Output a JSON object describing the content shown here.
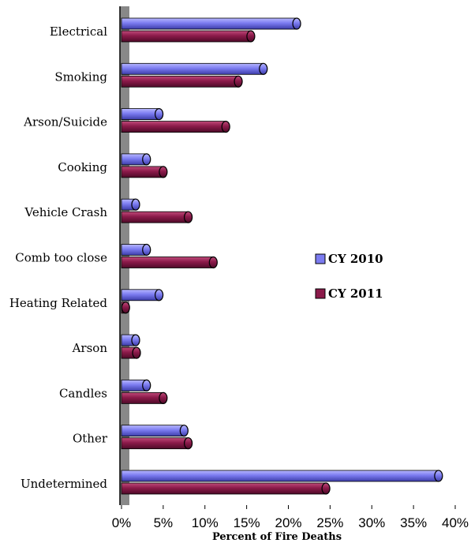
{
  "chart_data": {
    "type": "bar",
    "orientation": "horizontal",
    "style": "3d-cylinder",
    "categories": [
      "Electrical",
      "Smoking",
      "Arson/Suicide",
      "Cooking",
      "Vehicle Crash",
      "Comb too close",
      "Heating Related",
      "Arson",
      "Candles",
      "Other",
      "Undetermined"
    ],
    "series": [
      {
        "name": "CY 2010",
        "color": "#7b7bf0",
        "values": [
          21,
          17,
          4.5,
          3,
          1.7,
          3,
          4.5,
          1.7,
          3,
          7.5,
          38
        ]
      },
      {
        "name": "CY 2011",
        "color": "#8b1a4a",
        "values": [
          15.5,
          14,
          12.5,
          5,
          8,
          11,
          0.5,
          1.8,
          5,
          8,
          24.5
        ]
      }
    ],
    "xlabel": "Percent of Fire Deaths",
    "xlim": [
      0,
      40
    ],
    "xticks": [
      "0%",
      "5%",
      "10%",
      "15%",
      "20%",
      "25%",
      "30%",
      "35%",
      "40%"
    ],
    "grid": false,
    "legend": "right"
  }
}
